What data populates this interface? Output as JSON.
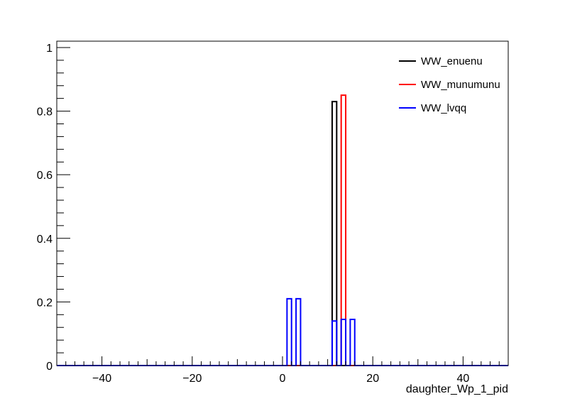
{
  "chart_data": {
    "type": "line",
    "title": "",
    "xlabel": "daughter_Wp_1_pid",
    "ylabel": "",
    "xlim": [
      -50,
      50
    ],
    "ylim": [
      0,
      1.02
    ],
    "x_ticks": [
      -40,
      -20,
      0,
      20,
      40
    ],
    "x_tick_labels": [
      "−40",
      "−20",
      "0",
      "20",
      "40"
    ],
    "y_ticks": [
      0,
      0.2,
      0.4,
      0.6,
      0.8,
      1
    ],
    "y_tick_labels": [
      "0",
      "0.2",
      "0.4",
      "0.6",
      "0.8",
      "1"
    ],
    "bin_width": 1,
    "grid": false,
    "legend_position": "top-right",
    "series": [
      {
        "name": "WW_enuenu",
        "color": "#000000",
        "bins": [
          {
            "x": [
              11,
              12
            ],
            "y": 0.83
          }
        ]
      },
      {
        "name": "WW_munumunu",
        "color": "#ff0000",
        "bins": [
          {
            "x": [
              13,
              14
            ],
            "y": 0.85
          }
        ]
      },
      {
        "name": "WW_lvqq",
        "color": "#0000ff",
        "bins": [
          {
            "x": [
              1,
              2
            ],
            "y": 0.21
          },
          {
            "x": [
              3,
              4
            ],
            "y": 0.21
          },
          {
            "x": [
              11,
              12
            ],
            "y": 0.14
          },
          {
            "x": [
              13,
              14
            ],
            "y": 0.145
          },
          {
            "x": [
              15,
              16
            ],
            "y": 0.145
          }
        ]
      }
    ]
  }
}
